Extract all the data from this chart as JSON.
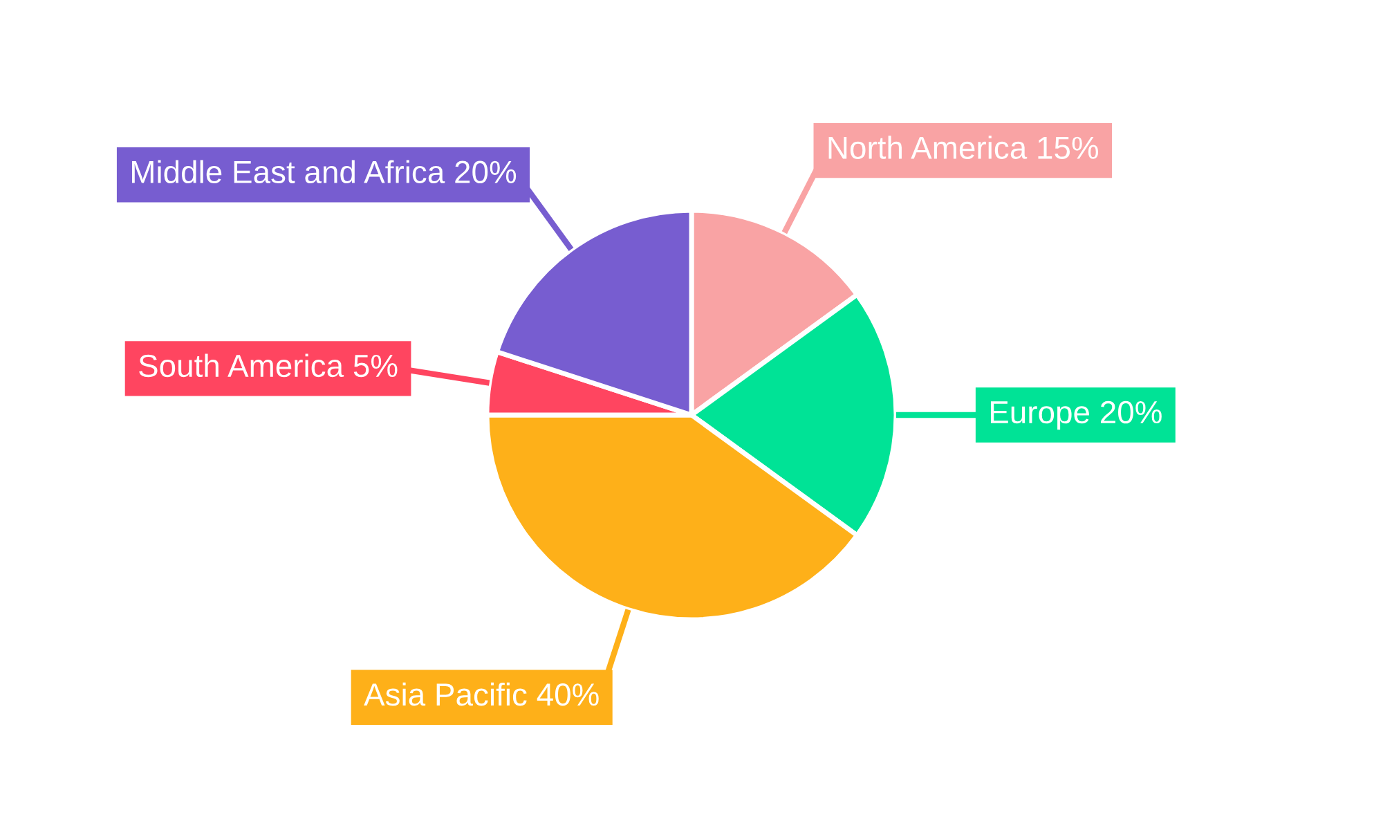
{
  "chart_data": {
    "type": "pie",
    "categories": [
      "North America",
      "Europe",
      "Asia Pacific",
      "South America",
      "Middle East and Africa"
    ],
    "values": [
      15,
      20,
      40,
      5,
      20
    ],
    "value_labels": [
      "15%",
      "20%",
      "40%",
      "5%",
      "20%"
    ],
    "colors": [
      "#f9a3a4",
      "#00e396",
      "#feb019",
      "#ff4560",
      "#775dd0"
    ],
    "legend": false
  }
}
